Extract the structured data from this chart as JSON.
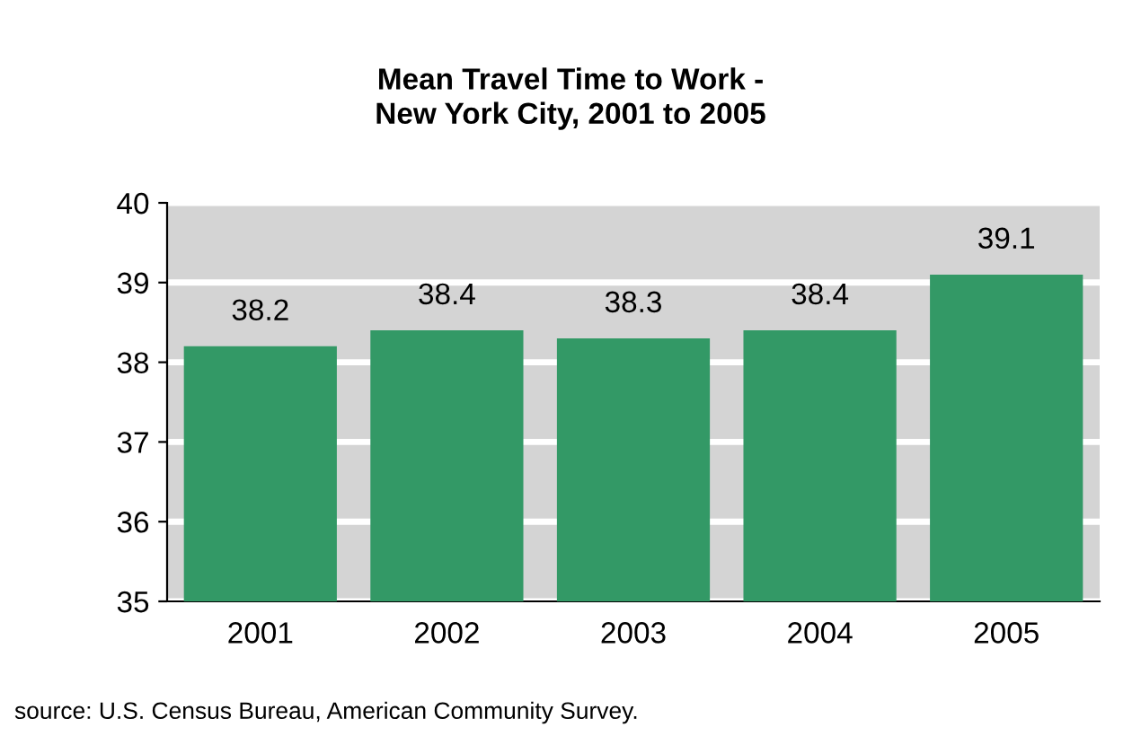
{
  "chart_data": {
    "type": "bar",
    "title": "Mean Travel Time to Work -\nNew York City, 2001 to 2005",
    "categories": [
      "2001",
      "2002",
      "2003",
      "2004",
      "2005"
    ],
    "values": [
      38.2,
      38.4,
      38.3,
      38.4,
      39.1
    ],
    "color": "#339966",
    "data_labels": true,
    "ylim": [
      35,
      40
    ],
    "yticks": [
      35,
      36,
      37,
      38,
      39,
      40
    ],
    "grid": "y",
    "legend": false,
    "annotations": [
      "source: U.S. Census Bureau, American Community Survey."
    ]
  }
}
